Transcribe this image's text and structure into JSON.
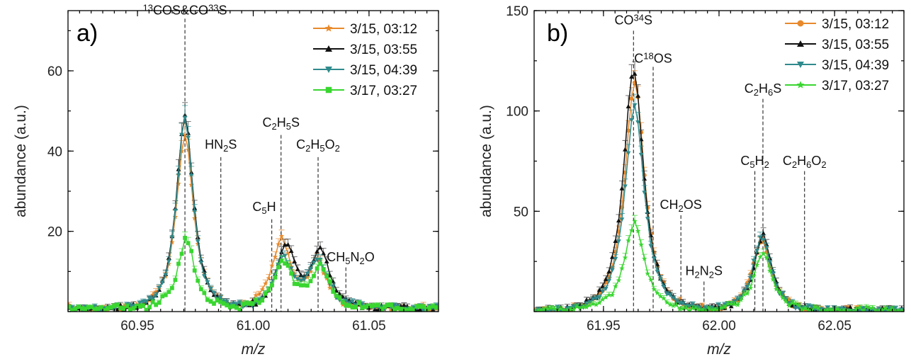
{
  "colors": {
    "orange": "#e8892b",
    "black": "#111111",
    "teal": "#2f8a8c",
    "green": "#39d630"
  },
  "chart_data": [
    {
      "type": "line",
      "panel_label": "a)",
      "xlabel": "m/z",
      "ylabel": "abundance (a.u.)",
      "xlim": [
        60.92,
        61.08
      ],
      "ylim": [
        0,
        75
      ],
      "xticks": [
        "60.95",
        "61.00",
        "61.05"
      ],
      "xtick_values": [
        60.95,
        61.0,
        61.05
      ],
      "yticks": [
        "20",
        "40",
        "60"
      ],
      "ytick_values": [
        20,
        40,
        60
      ],
      "legend_position": "top-right",
      "series": [
        {
          "name": "3/15, 03:12",
          "color": "#e8892b",
          "marker": "star",
          "peaks": [
            [
              60.9705,
              43,
              0.0058
            ],
            [
              61.012,
              17,
              0.0065
            ],
            [
              61.028,
              11,
              0.006
            ]
          ]
        },
        {
          "name": "3/15, 03:55",
          "color": "#111111",
          "marker": "triangle-up",
          "peaks": [
            [
              60.9705,
              48,
              0.0057
            ],
            [
              61.014,
              15,
              0.0065
            ],
            [
              61.029,
              14,
              0.0065
            ]
          ]
        },
        {
          "name": "3/15, 04:39",
          "color": "#2f8a8c",
          "marker": "triangle-down",
          "peaks": [
            [
              60.9705,
              47,
              0.0057
            ],
            [
              61.013,
              12,
              0.0065
            ],
            [
              61.028,
              12,
              0.0065
            ]
          ]
        },
        {
          "name": "3/17, 03:27",
          "color": "#39d630",
          "marker": "square",
          "peaks": [
            [
              60.971,
              17,
              0.0058
            ],
            [
              61.013,
              11,
              0.0065
            ],
            [
              61.029,
              10,
              0.0062
            ]
          ]
        }
      ],
      "annotations": [
        {
          "x": 60.9705,
          "y_top": 73,
          "y_text": 73,
          "label_parts": [
            [
              "sup",
              "13"
            ],
            [
              "n",
              "COS&CO"
            ],
            [
              "sup",
              "33"
            ],
            [
              "n",
              "S"
            ]
          ],
          "anchor": "middle"
        },
        {
          "x": 60.986,
          "y_top": 38.5,
          "y_text": 39.5,
          "label_parts": [
            [
              "n",
              "HN"
            ],
            [
              "sub",
              "2"
            ],
            [
              "n",
              "S"
            ]
          ],
          "anchor": "middle"
        },
        {
          "x": 61.008,
          "y_top": 23,
          "y_text": 24,
          "label_parts": [
            [
              "n",
              "C"
            ],
            [
              "sub",
              "5"
            ],
            [
              "n",
              "H"
            ]
          ],
          "anchor": "end"
        },
        {
          "x": 61.012,
          "y_top": 44,
          "y_text": 45,
          "label_parts": [
            [
              "n",
              "C"
            ],
            [
              "sub",
              "2"
            ],
            [
              "n",
              "H"
            ],
            [
              "sub",
              "5"
            ],
            [
              "n",
              "S"
            ]
          ],
          "anchor": "middle"
        },
        {
          "x": 61.028,
          "y_top": 38.5,
          "y_text": 39.5,
          "label_parts": [
            [
              "n",
              "C"
            ],
            [
              "sub",
              "2"
            ],
            [
              "n",
              "H"
            ],
            [
              "sub",
              "5"
            ],
            [
              "n",
              "O"
            ],
            [
              "sub",
              "2"
            ]
          ],
          "anchor": "middle"
        },
        {
          "x": 61.04,
          "y_top": 11,
          "y_text": 11.5,
          "label_parts": [
            [
              "n",
              "CH"
            ],
            [
              "sub",
              "5"
            ],
            [
              "n",
              "N"
            ],
            [
              "sub",
              "2"
            ],
            [
              "n",
              "O"
            ]
          ],
          "anchor": "start"
        }
      ]
    },
    {
      "type": "line",
      "panel_label": "b)",
      "xlabel": "m/z",
      "ylabel": "abundance (a.u.)",
      "xlim": [
        61.92,
        62.08
      ],
      "ylim": [
        0,
        150
      ],
      "xticks": [
        "61.95",
        "62.00",
        "62.05"
      ],
      "xtick_values": [
        61.95,
        62.0,
        62.05
      ],
      "yticks": [
        "50",
        "100",
        "150"
      ],
      "ytick_values": [
        50,
        100,
        150
      ],
      "legend_position": "top-right",
      "series": [
        {
          "name": "3/15, 03:12",
          "color": "#e8892b",
          "marker": "circle",
          "peaks": [
            [
              61.9635,
              113,
              0.0068
            ],
            [
              62.0185,
              35,
              0.0062
            ]
          ]
        },
        {
          "name": "3/15, 03:55",
          "color": "#111111",
          "marker": "triangle-up",
          "peaks": [
            [
              61.963,
              120,
              0.0068
            ],
            [
              62.019,
              37,
              0.0062
            ]
          ]
        },
        {
          "name": "3/15, 04:39",
          "color": "#2f8a8c",
          "marker": "triangle-down",
          "peaks": [
            [
              61.9635,
              102,
              0.0066
            ],
            [
              62.0185,
              36,
              0.0062
            ]
          ]
        },
        {
          "name": "3/17, 03:27",
          "color": "#39d630",
          "marker": "star",
          "peaks": [
            [
              61.9635,
              43,
              0.0068
            ],
            [
              62.019,
              28,
              0.0062
            ]
          ]
        }
      ],
      "annotations": [
        {
          "x": 61.963,
          "y_top": 140,
          "y_text": 141,
          "label_parts": [
            [
              "n",
              "CO"
            ],
            [
              "sup",
              "34"
            ],
            [
              "n",
              "S"
            ]
          ],
          "anchor": "middle"
        },
        {
          "x": 61.9715,
          "y_top": 122,
          "y_text": 122,
          "label_parts": [
            [
              "n",
              "C"
            ],
            [
              "sup",
              "18"
            ],
            [
              "n",
              "OS"
            ]
          ],
          "anchor": "middle"
        },
        {
          "x": 61.9835,
          "y_top": 48,
          "y_text": 49,
          "label_parts": [
            [
              "n",
              "CH"
            ],
            [
              "sub",
              "2"
            ],
            [
              "n",
              "OS"
            ]
          ],
          "anchor": "middle"
        },
        {
          "x": 61.9935,
          "y_top": 15,
          "y_text": 16,
          "label_parts": [
            [
              "n",
              "H"
            ],
            [
              "sub",
              "2"
            ],
            [
              "n",
              "N"
            ],
            [
              "sub",
              "2"
            ],
            [
              "n",
              "S"
            ]
          ],
          "anchor": "middle"
        },
        {
          "x": 62.0155,
          "y_top": 70,
          "y_text": 71,
          "label_parts": [
            [
              "n",
              "C"
            ],
            [
              "sub",
              "5"
            ],
            [
              "n",
              "H"
            ],
            [
              "sub",
              "2"
            ]
          ],
          "anchor": "middle"
        },
        {
          "x": 62.019,
          "y_top": 106,
          "y_text": 107,
          "label_parts": [
            [
              "n",
              "C"
            ],
            [
              "sub",
              "2"
            ],
            [
              "n",
              "H"
            ],
            [
              "sub",
              "6"
            ],
            [
              "n",
              "S"
            ]
          ],
          "anchor": "middle"
        },
        {
          "x": 62.037,
          "y_top": 70,
          "y_text": 71,
          "label_parts": [
            [
              "n",
              "C"
            ],
            [
              "sub",
              "2"
            ],
            [
              "n",
              "H"
            ],
            [
              "sub",
              "6"
            ],
            [
              "n",
              "O"
            ],
            [
              "sub",
              "2"
            ]
          ],
          "anchor": "middle"
        }
      ]
    }
  ]
}
